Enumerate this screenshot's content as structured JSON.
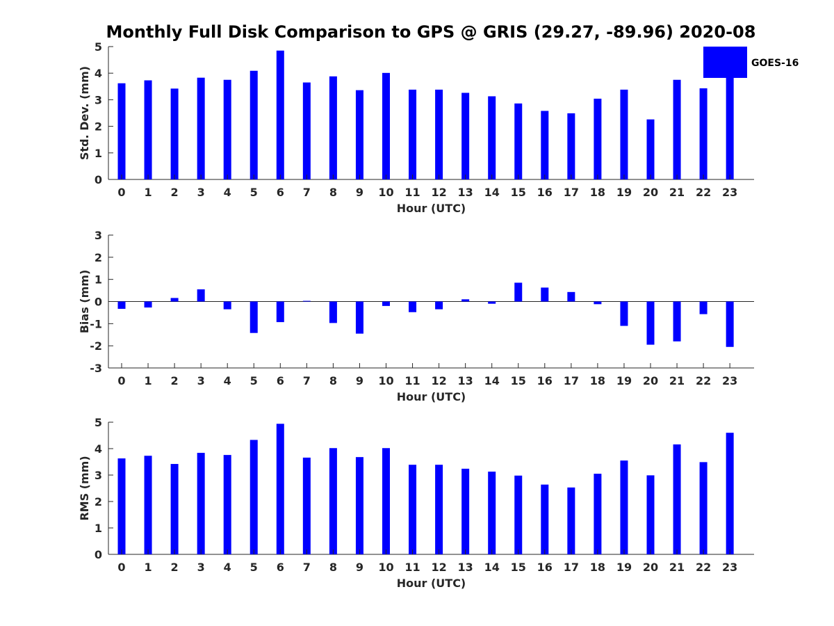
{
  "title": "Monthly Full Disk Comparison to GPS @ GRIS (29.27, -89.96) 2020-08",
  "colors": {
    "bar": "#0000ff",
    "axis": "#262626"
  },
  "legend": {
    "label": "GOES-16",
    "placement": "top-right, outside plot"
  },
  "chart_data": [
    {
      "type": "bar",
      "xlabel": "Hour (UTC)",
      "ylabel": "Std. Dev. (mm)",
      "ylim": [
        0,
        5
      ],
      "yticks": [
        0,
        1,
        2,
        3,
        4,
        5
      ],
      "categories": [
        "0",
        "1",
        "2",
        "3",
        "4",
        "5",
        "6",
        "7",
        "8",
        "9",
        "10",
        "11",
        "12",
        "13",
        "14",
        "15",
        "16",
        "17",
        "18",
        "19",
        "20",
        "21",
        "22",
        "23"
      ],
      "series": [
        {
          "name": "GOES-16",
          "values": [
            3.62,
            3.73,
            3.42,
            3.83,
            3.75,
            4.09,
            4.85,
            3.65,
            3.88,
            3.36,
            4.01,
            3.38,
            3.38,
            3.26,
            3.13,
            2.86,
            2.58,
            2.49,
            3.04,
            3.38,
            2.26,
            3.75,
            3.43,
            3.97
          ]
        }
      ]
    },
    {
      "type": "bar",
      "xlabel": "Hour (UTC)",
      "ylabel": "Bias (mm)",
      "ylim": [
        -3,
        3
      ],
      "yticks": [
        -3,
        -2,
        -1,
        0,
        1,
        2,
        3
      ],
      "categories": [
        "0",
        "1",
        "2",
        "3",
        "4",
        "5",
        "6",
        "7",
        "8",
        "9",
        "10",
        "11",
        "12",
        "13",
        "14",
        "15",
        "16",
        "17",
        "18",
        "19",
        "20",
        "21",
        "22",
        "23"
      ],
      "series": [
        {
          "name": "GOES-16",
          "values": [
            -0.33,
            -0.27,
            0.16,
            0.55,
            -0.35,
            -1.42,
            -0.93,
            0.03,
            -0.97,
            -1.45,
            -0.2,
            -0.48,
            -0.35,
            0.1,
            -0.1,
            0.85,
            0.63,
            0.43,
            -0.12,
            -1.1,
            -1.95,
            -1.8,
            -0.57,
            -2.05
          ]
        }
      ]
    },
    {
      "type": "bar",
      "xlabel": "Hour (UTC)",
      "ylabel": "RMS (mm)",
      "ylim": [
        0,
        5
      ],
      "yticks": [
        0,
        1,
        2,
        3,
        4,
        5
      ],
      "categories": [
        "0",
        "1",
        "2",
        "3",
        "4",
        "5",
        "6",
        "7",
        "8",
        "9",
        "10",
        "11",
        "12",
        "13",
        "14",
        "15",
        "16",
        "17",
        "18",
        "19",
        "20",
        "21",
        "22",
        "23"
      ],
      "series": [
        {
          "name": "GOES-16",
          "values": [
            3.63,
            3.73,
            3.42,
            3.84,
            3.76,
            4.33,
            4.94,
            3.66,
            4.02,
            3.68,
            4.02,
            3.39,
            3.39,
            3.24,
            3.13,
            2.98,
            2.64,
            2.53,
            3.05,
            3.55,
            2.99,
            4.16,
            3.49,
            4.6
          ]
        }
      ]
    }
  ]
}
